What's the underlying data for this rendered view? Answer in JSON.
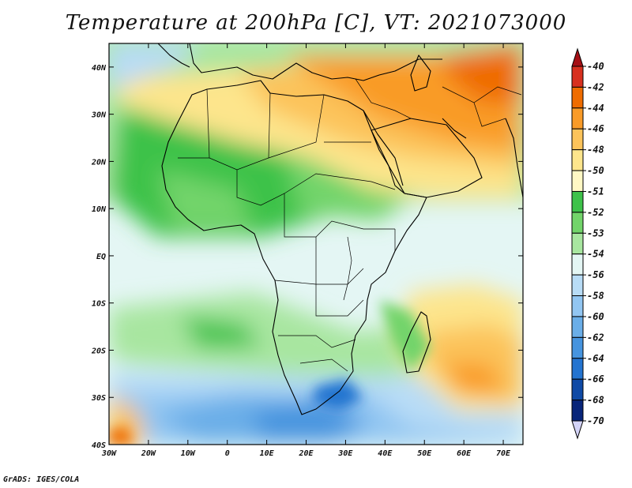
{
  "title": "Temperature at 200hPa [C], VT: 2021073000",
  "credit": "GrADS: IGES/COLA",
  "map": {
    "lon_ticks": [
      "30W",
      "20W",
      "10W",
      "0",
      "10E",
      "20E",
      "30E",
      "40E",
      "50E",
      "60E",
      "70E"
    ],
    "lat_ticks": [
      "40N",
      "30N",
      "20N",
      "10N",
      "EQ",
      "10S",
      "20S",
      "30S",
      "40S"
    ]
  },
  "colorbar": {
    "labels": [
      "-40",
      "-42",
      "-44",
      "-46",
      "-48",
      "-50",
      "-51",
      "-52",
      "-53",
      "-54",
      "-56",
      "-58",
      "-60",
      "-62",
      "-64",
      "-66",
      "-68",
      "-70"
    ],
    "colors": [
      "#a50f15",
      "#d7301f",
      "#ef6c00",
      "#f99b28",
      "#fcc35a",
      "#fde58c",
      "#fff8c4",
      "#3ec24a",
      "#72d46a",
      "#a8e6a0",
      "#e4f6f4",
      "#b8dcf6",
      "#92c6f2",
      "#6aaee8",
      "#4694df",
      "#2474d0",
      "#0f4aa6",
      "#08257a",
      "#d4d4f8"
    ]
  },
  "chart_data": {
    "type": "heatmap",
    "title": "Temperature at 200hPa [C], VT: 2021073000",
    "xlabel": "",
    "ylabel": "",
    "x_range": [
      -30,
      75
    ],
    "y_range": [
      -40,
      45
    ],
    "colorbar_levels": [
      -40,
      -42,
      -44,
      -46,
      -48,
      -50,
      -51,
      -52,
      -53,
      -54,
      -56,
      -58,
      -60,
      -62,
      -64,
      -66,
      -68,
      -70
    ],
    "regions": [
      {
        "label": "-46",
        "lon": [
          45,
          75
        ],
        "lat": [
          25,
          45
        ]
      },
      {
        "label": "-48",
        "lon": [
          0,
          45
        ],
        "lat": [
          20,
          40
        ]
      },
      {
        "label": "-52",
        "lon": [
          -20,
          30
        ],
        "lat": [
          5,
          25
        ]
      },
      {
        "label": "-54",
        "lon": [
          -30,
          45
        ],
        "lat": [
          -15,
          5
        ]
      },
      {
        "label": "-56",
        "lon": [
          -30,
          55
        ],
        "lat": [
          -30,
          -20
        ]
      },
      {
        "label": "-62",
        "lon": [
          -10,
          40
        ],
        "lat": [
          -40,
          -30
        ]
      },
      {
        "label": "-48",
        "lon": [
          50,
          75
        ],
        "lat": [
          -35,
          -20
        ]
      }
    ]
  }
}
